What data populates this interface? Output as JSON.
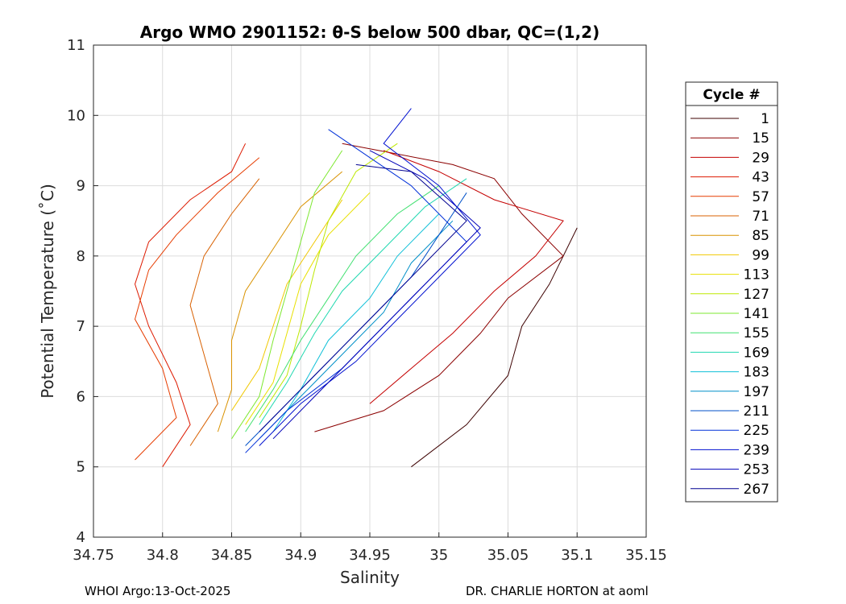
{
  "chart_data": {
    "type": "line",
    "title": "Argo WMO 2901152: θ-S below 500 dbar,  QC=(1,2)",
    "xlabel": "Salinity",
    "ylabel": "Potential Temperature (˚C)",
    "xlim": [
      34.75,
      35.15
    ],
    "ylim": [
      4,
      11
    ],
    "xticks": [
      34.75,
      34.8,
      34.85,
      34.9,
      34.95,
      35,
      35.05,
      35.1,
      35.15
    ],
    "xtick_labels": [
      "34.75",
      "34.8",
      "34.85",
      "34.9",
      "34.95",
      "35",
      "35.05",
      "35.1",
      "35.15"
    ],
    "yticks": [
      4,
      5,
      6,
      7,
      8,
      9,
      10,
      11
    ],
    "ytick_labels": [
      "4",
      "5",
      "6",
      "7",
      "8",
      "9",
      "10",
      "11"
    ],
    "grid": true,
    "legend": {
      "title": "Cycle #",
      "position": "right",
      "entries": [
        "1",
        "15",
        "29",
        "43",
        "57",
        "71",
        "85",
        "99",
        "113",
        "127",
        "141",
        "155",
        "169",
        "183",
        "197",
        "211",
        "225",
        "239",
        "253",
        "267"
      ],
      "colors": [
        "#3d0000",
        "#8b0000",
        "#c40000",
        "#dd1a00",
        "#e63c00",
        "#d86000",
        "#d99200",
        "#f0c800",
        "#e8e000",
        "#bde800",
        "#7de830",
        "#40e070",
        "#20d8b0",
        "#10c0d8",
        "#0090c8",
        "#0050c8",
        "#0030d8",
        "#0010d0",
        "#0000b8",
        "#000090"
      ]
    },
    "series": [
      {
        "name": "1",
        "color": "#3d0000",
        "points": [
          [
            34.98,
            5.0
          ],
          [
            35.02,
            5.6
          ],
          [
            35.05,
            6.3
          ],
          [
            35.06,
            7.0
          ],
          [
            35.08,
            7.6
          ],
          [
            35.1,
            8.4
          ]
        ]
      },
      {
        "name": "15",
        "color": "#8b0000",
        "points": [
          [
            34.91,
            5.5
          ],
          [
            34.96,
            5.8
          ],
          [
            35.0,
            6.3
          ],
          [
            35.03,
            6.9
          ],
          [
            35.05,
            7.4
          ],
          [
            35.09,
            8.0
          ],
          [
            35.06,
            8.6
          ],
          [
            35.04,
            9.1
          ],
          [
            35.01,
            9.3
          ],
          [
            34.93,
            9.6
          ]
        ]
      },
      {
        "name": "29",
        "color": "#c40000",
        "points": [
          [
            34.95,
            5.9
          ],
          [
            34.98,
            6.4
          ],
          [
            35.01,
            6.9
          ],
          [
            35.04,
            7.5
          ],
          [
            35.07,
            8.0
          ],
          [
            35.09,
            8.5
          ],
          [
            35.04,
            8.8
          ],
          [
            35.0,
            9.2
          ],
          [
            34.96,
            9.5
          ]
        ]
      },
      {
        "name": "43",
        "color": "#dd1a00",
        "points": [
          [
            34.8,
            5.0
          ],
          [
            34.82,
            5.6
          ],
          [
            34.81,
            6.2
          ],
          [
            34.79,
            7.0
          ],
          [
            34.78,
            7.6
          ],
          [
            34.79,
            8.2
          ],
          [
            34.82,
            8.8
          ],
          [
            34.85,
            9.2
          ],
          [
            34.86,
            9.6
          ]
        ]
      },
      {
        "name": "57",
        "color": "#e63c00",
        "points": [
          [
            34.78,
            5.1
          ],
          [
            34.81,
            5.7
          ],
          [
            34.8,
            6.4
          ],
          [
            34.78,
            7.1
          ],
          [
            34.79,
            7.8
          ],
          [
            34.81,
            8.3
          ],
          [
            34.84,
            8.9
          ],
          [
            34.87,
            9.4
          ]
        ]
      },
      {
        "name": "71",
        "color": "#d86000",
        "points": [
          [
            34.82,
            5.3
          ],
          [
            34.84,
            5.9
          ],
          [
            34.83,
            6.6
          ],
          [
            34.82,
            7.3
          ],
          [
            34.83,
            8.0
          ],
          [
            34.85,
            8.6
          ],
          [
            34.87,
            9.1
          ]
        ]
      },
      {
        "name": "85",
        "color": "#d99200",
        "points": [
          [
            34.84,
            5.5
          ],
          [
            34.85,
            6.1
          ],
          [
            34.85,
            6.8
          ],
          [
            34.86,
            7.5
          ],
          [
            34.88,
            8.1
          ],
          [
            34.9,
            8.7
          ],
          [
            34.93,
            9.2
          ]
        ]
      },
      {
        "name": "99",
        "color": "#f0c800",
        "points": [
          [
            34.85,
            5.8
          ],
          [
            34.87,
            6.4
          ],
          [
            34.88,
            7.0
          ],
          [
            34.89,
            7.6
          ],
          [
            34.91,
            8.2
          ],
          [
            34.93,
            8.8
          ]
        ]
      },
      {
        "name": "113",
        "color": "#e8e000",
        "points": [
          [
            34.86,
            5.6
          ],
          [
            34.88,
            6.2
          ],
          [
            34.89,
            6.9
          ],
          [
            34.9,
            7.6
          ],
          [
            34.92,
            8.3
          ],
          [
            34.95,
            8.9
          ]
        ]
      },
      {
        "name": "127",
        "color": "#bde800",
        "points": [
          [
            34.87,
            5.7
          ],
          [
            34.89,
            6.3
          ],
          [
            34.9,
            7.0
          ],
          [
            34.91,
            7.8
          ],
          [
            34.92,
            8.5
          ],
          [
            34.94,
            9.2
          ],
          [
            34.97,
            9.6
          ]
        ]
      },
      {
        "name": "141",
        "color": "#7de830",
        "points": [
          [
            34.85,
            5.4
          ],
          [
            34.87,
            6.0
          ],
          [
            34.88,
            6.8
          ],
          [
            34.89,
            7.5
          ],
          [
            34.9,
            8.2
          ],
          [
            34.91,
            8.9
          ],
          [
            34.93,
            9.5
          ]
        ]
      },
      {
        "name": "155",
        "color": "#40e070",
        "points": [
          [
            34.86,
            5.5
          ],
          [
            34.88,
            6.1
          ],
          [
            34.9,
            6.8
          ],
          [
            34.92,
            7.4
          ],
          [
            34.94,
            8.0
          ],
          [
            34.97,
            8.6
          ],
          [
            35.0,
            9.0
          ]
        ]
      },
      {
        "name": "169",
        "color": "#20d8b0",
        "points": [
          [
            34.87,
            5.6
          ],
          [
            34.89,
            6.2
          ],
          [
            34.91,
            6.9
          ],
          [
            34.93,
            7.5
          ],
          [
            34.96,
            8.1
          ],
          [
            34.99,
            8.7
          ],
          [
            35.02,
            9.1
          ]
        ]
      },
      {
        "name": "183",
        "color": "#10c0d8",
        "points": [
          [
            34.88,
            5.5
          ],
          [
            34.9,
            6.1
          ],
          [
            34.92,
            6.8
          ],
          [
            34.95,
            7.4
          ],
          [
            34.97,
            8.0
          ],
          [
            35.0,
            8.6
          ]
        ]
      },
      {
        "name": "197",
        "color": "#0090c8",
        "points": [
          [
            34.87,
            5.4
          ],
          [
            34.9,
            6.0
          ],
          [
            34.93,
            6.6
          ],
          [
            34.96,
            7.2
          ],
          [
            34.98,
            7.9
          ],
          [
            35.01,
            8.5
          ]
        ]
      },
      {
        "name": "211",
        "color": "#0050c8",
        "points": [
          [
            34.86,
            5.3
          ],
          [
            34.89,
            5.9
          ],
          [
            34.92,
            6.5
          ],
          [
            34.95,
            7.1
          ],
          [
            34.98,
            7.7
          ],
          [
            35.0,
            8.3
          ],
          [
            35.02,
            8.9
          ]
        ]
      },
      {
        "name": "225",
        "color": "#0030d8",
        "points": [
          [
            34.86,
            5.2
          ],
          [
            34.89,
            5.8
          ],
          [
            34.93,
            6.4
          ],
          [
            34.96,
            7.0
          ],
          [
            34.99,
            7.6
          ],
          [
            35.02,
            8.2
          ],
          [
            34.98,
            9.0
          ],
          [
            34.95,
            9.4
          ],
          [
            34.92,
            9.8
          ]
        ]
      },
      {
        "name": "239",
        "color": "#0010d0",
        "points": [
          [
            34.87,
            5.3
          ],
          [
            34.9,
            5.9
          ],
          [
            34.94,
            6.5
          ],
          [
            34.97,
            7.1
          ],
          [
            35.0,
            7.7
          ],
          [
            35.03,
            8.3
          ],
          [
            35.0,
            9.0
          ],
          [
            34.96,
            9.6
          ],
          [
            34.98,
            10.1
          ]
        ]
      },
      {
        "name": "253",
        "color": "#0000b8",
        "points": [
          [
            34.88,
            5.4
          ],
          [
            34.91,
            6.0
          ],
          [
            34.94,
            6.6
          ],
          [
            34.97,
            7.2
          ],
          [
            35.0,
            7.8
          ],
          [
            35.03,
            8.4
          ],
          [
            34.99,
            9.1
          ],
          [
            34.95,
            9.5
          ]
        ]
      },
      {
        "name": "267",
        "color": "#000090",
        "points": [
          [
            34.87,
            5.5
          ],
          [
            34.9,
            6.1
          ],
          [
            34.93,
            6.7
          ],
          [
            34.96,
            7.3
          ],
          [
            34.99,
            7.9
          ],
          [
            35.02,
            8.5
          ],
          [
            34.98,
            9.2
          ],
          [
            34.94,
            9.3
          ]
        ]
      }
    ]
  },
  "footer": {
    "left": "WHOI Argo:13-Oct-2025",
    "right": "DR. CHARLIE HORTON at aoml"
  }
}
